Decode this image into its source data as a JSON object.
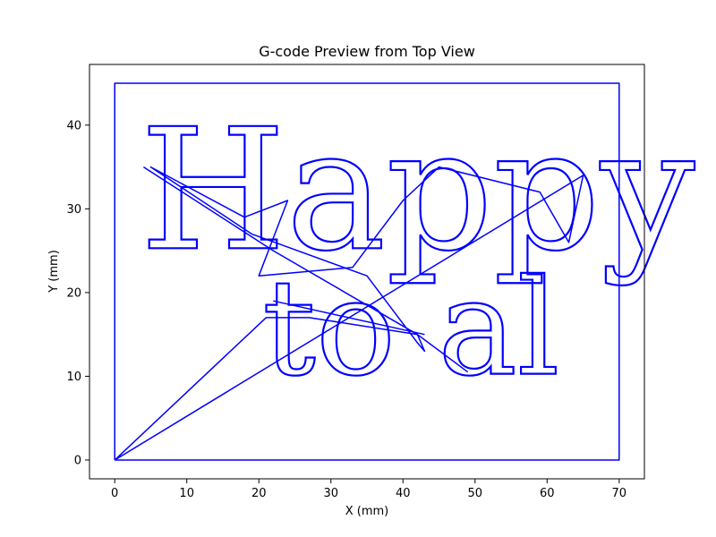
{
  "chart_data": {
    "type": "line",
    "title": "G-code Preview from Top View",
    "xlabel": "X (mm)",
    "ylabel": "Y (mm)",
    "xlim": [
      -3.5,
      73.5
    ],
    "ylim": [
      -2.25,
      47.25
    ],
    "xticks": [
      0,
      10,
      20,
      30,
      40,
      50,
      60,
      70
    ],
    "yticks": [
      0,
      10,
      20,
      30,
      40
    ],
    "grid": false,
    "legend": "none",
    "colors": {
      "path": "#0000ff",
      "axes": "#000000",
      "background": "#ffffff"
    },
    "series": [
      {
        "kind": "frame",
        "x": [
          0,
          0,
          70,
          70,
          0
        ],
        "y": [
          0,
          45,
          45,
          0,
          0
        ]
      },
      {
        "kind": "travel",
        "x": [
          0,
          21,
          27,
          42,
          43,
          42,
          35,
          19,
          5,
          18,
          24,
          20,
          33,
          40,
          45,
          59,
          63,
          65,
          0
        ],
        "y": [
          0,
          17,
          17,
          15,
          13,
          14,
          22,
          27,
          35,
          29,
          31,
          22,
          23,
          31,
          35,
          32,
          26,
          34,
          0
        ]
      },
      {
        "kind": "travel",
        "x": [
          4,
          22,
          42,
          49
        ],
        "y": [
          35,
          25,
          15,
          10.5
        ]
      },
      {
        "kind": "travel",
        "x": [
          22,
          43
        ],
        "y": [
          19,
          15
        ]
      }
    ],
    "annotations": [
      {
        "text": "Happy Holi",
        "x": 3.5,
        "y": 25.3,
        "size_data_height": 14.5
      },
      {
        "text": "to al",
        "x": 20.5,
        "y": 10.3,
        "size_data_height": 11.5
      }
    ]
  }
}
